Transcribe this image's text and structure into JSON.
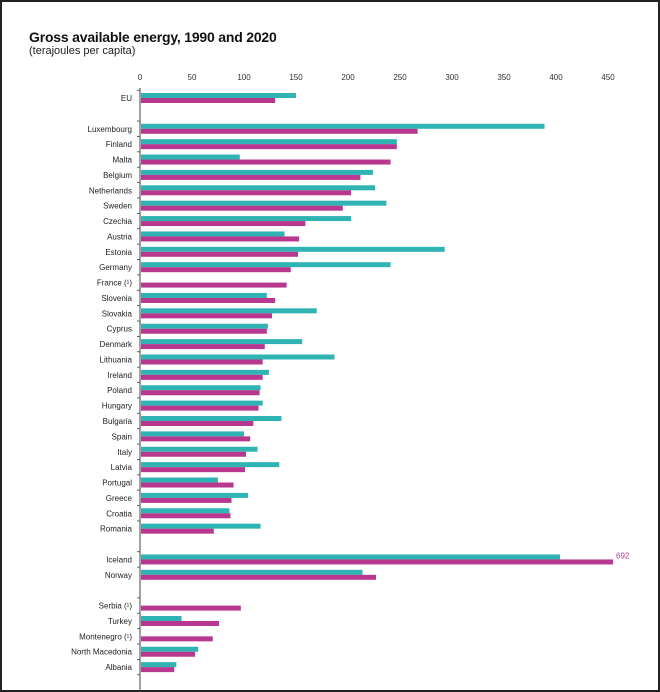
{
  "chart_data": {
    "type": "bar",
    "orientation": "horizontal",
    "title": "Gross available energy, 1990 and 2020",
    "subtitle": "(terajoules per capita)",
    "xlabel": "",
    "ylabel": "",
    "xlim": [
      0,
      450
    ],
    "xticks": [
      0,
      50,
      100,
      150,
      200,
      250,
      300,
      350,
      400,
      450
    ],
    "grid": false,
    "legend": "none",
    "colors": {
      "teal": "#2fb3b3",
      "magenta": "#b8378f"
    },
    "series": [
      {
        "name": "teal",
        "color": "#2fb3b3"
      },
      {
        "name": "magenta",
        "color": "#b8378f"
      }
    ],
    "groups": [
      {
        "rows": [
          {
            "label": "EU",
            "teal": 149,
            "magenta": 129
          }
        ]
      },
      {
        "rows": [
          {
            "label": "Luxembourg",
            "teal": 388,
            "magenta": 266
          },
          {
            "label": "Finland",
            "teal": 246,
            "magenta": 246
          },
          {
            "label": "Malta",
            "teal": 95,
            "magenta": 240
          },
          {
            "label": "Belgium",
            "teal": 223,
            "magenta": 211
          },
          {
            "label": "Netherlands",
            "teal": 225,
            "magenta": 202
          },
          {
            "label": "Sweden",
            "teal": 236,
            "magenta": 194
          },
          {
            "label": "Czechia",
            "teal": 202,
            "magenta": 158
          },
          {
            "label": "Austria",
            "teal": 138,
            "magenta": 152
          },
          {
            "label": "Estonia",
            "teal": 292,
            "magenta": 151
          },
          {
            "label": "Germany",
            "teal": 240,
            "magenta": 144
          },
          {
            "label": "France (¹)",
            "teal": null,
            "magenta": 140
          },
          {
            "label": "Slovenia",
            "teal": 121,
            "magenta": 129
          },
          {
            "label": "Slovakia",
            "teal": 169,
            "magenta": 126
          },
          {
            "label": "Cyprus",
            "teal": 122,
            "magenta": 121
          },
          {
            "label": "Denmark",
            "teal": 155,
            "magenta": 119
          },
          {
            "label": "Lithuania",
            "teal": 186,
            "magenta": 117
          },
          {
            "label": "Ireland",
            "teal": 123,
            "magenta": 117
          },
          {
            "label": "Poland",
            "teal": 115,
            "magenta": 114
          },
          {
            "label": "Hungary",
            "teal": 117,
            "magenta": 113
          },
          {
            "label": "Bulgaria",
            "teal": 135,
            "magenta": 108
          },
          {
            "label": "Spain",
            "teal": 99,
            "magenta": 105
          },
          {
            "label": "Italy",
            "teal": 112,
            "magenta": 101
          },
          {
            "label": "Latvia",
            "teal": 133,
            "magenta": 100
          },
          {
            "label": "Portugal",
            "teal": 74,
            "magenta": 89
          },
          {
            "label": "Greece",
            "teal": 103,
            "magenta": 87
          },
          {
            "label": "Croatia",
            "teal": 85,
            "magenta": 86
          },
          {
            "label": "Romania",
            "teal": 115,
            "magenta": 70
          }
        ]
      },
      {
        "rows": [
          {
            "label": "Iceland",
            "teal": 403,
            "magenta": 692,
            "magenta_label": "692"
          },
          {
            "label": "Norway",
            "teal": 213,
            "magenta": 226
          }
        ]
      },
      {
        "rows": [
          {
            "label": "Serbia (¹)",
            "teal": null,
            "magenta": 96
          },
          {
            "label": "Turkey",
            "teal": 39,
            "magenta": 75
          },
          {
            "label": "Montenegro (¹)",
            "teal": null,
            "magenta": 69
          },
          {
            "label": "North Macedonia",
            "teal": 55,
            "magenta": 52
          },
          {
            "label": "Albania",
            "teal": 34,
            "magenta": 32
          }
        ]
      }
    ]
  }
}
